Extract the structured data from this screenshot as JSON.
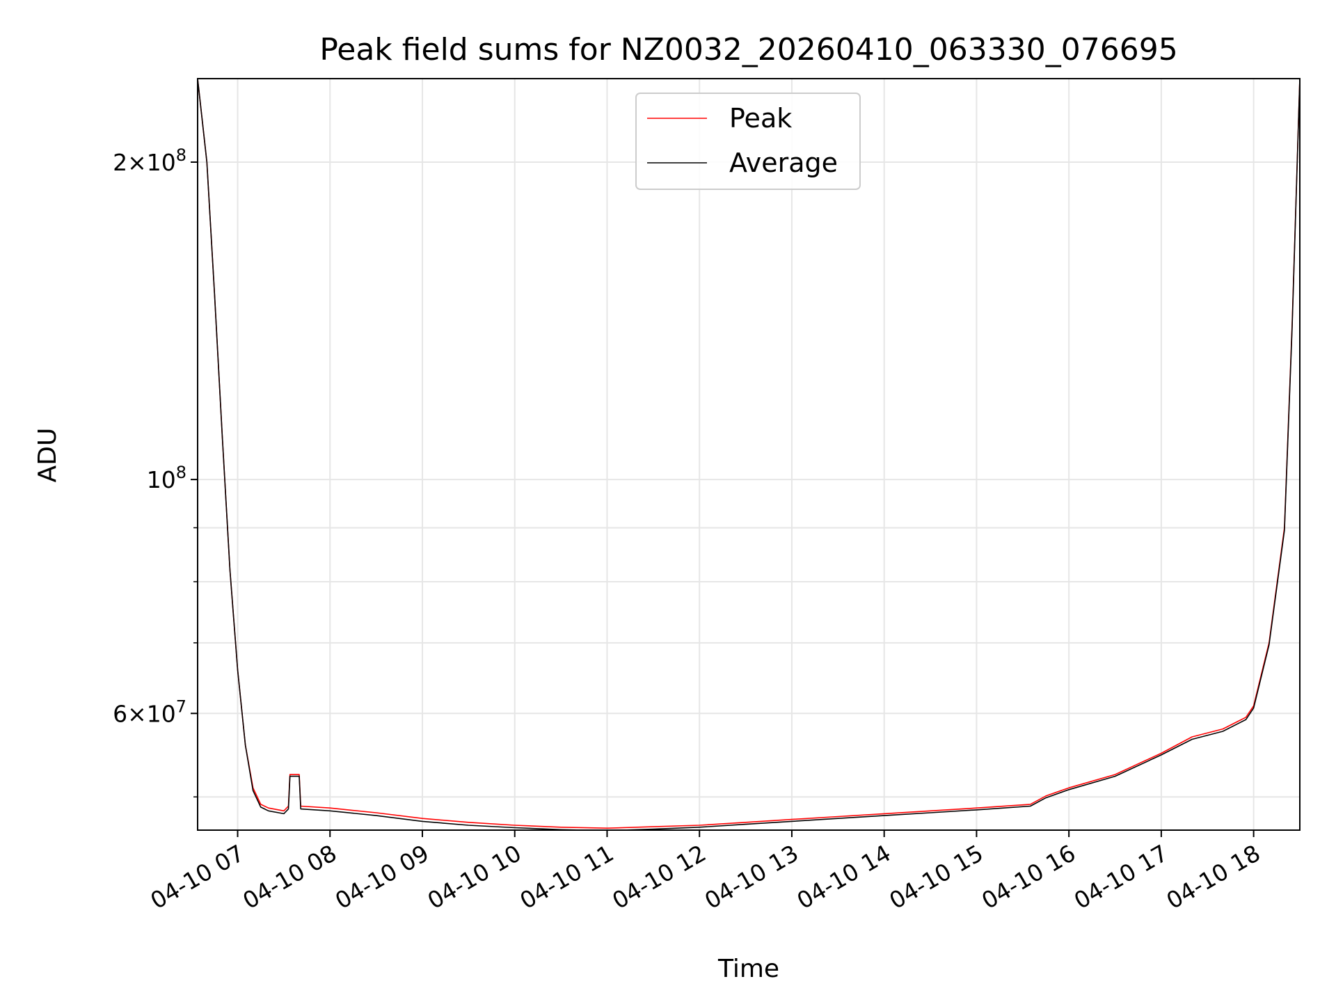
{
  "chart_data": {
    "type": "line",
    "title": "Peak field sums for NZ0032_20260410_063330_076695",
    "xlabel": "Time",
    "ylabel": "ADU",
    "yscale": "log",
    "grid": true,
    "legend_position": "top-center",
    "xlim": [
      "2026-04-10 06:34",
      "2026-04-10 18:30"
    ],
    "ylim": [
      46500000,
      240000000
    ],
    "x_ticks": [
      "04-10 07",
      "04-10 08",
      "04-10 09",
      "04-10 10",
      "04-10 11",
      "04-10 12",
      "04-10 13",
      "04-10 14",
      "04-10 15",
      "04-10 16",
      "04-10 17",
      "04-10 18"
    ],
    "y_ticks": [
      {
        "value": 200000000,
        "mant": "2",
        "exp": "8"
      },
      {
        "value": 100000000,
        "mant": "",
        "exp": "8"
      },
      {
        "value": 60000000,
        "mant": "6",
        "exp": "7"
      }
    ],
    "y_minor_ticks": [
      50000000,
      70000000,
      80000000,
      90000000
    ],
    "x": [
      "06:34",
      "06:40",
      "06:45",
      "06:50",
      "06:55",
      "07:00",
      "07:05",
      "07:10",
      "07:15",
      "07:20",
      "07:30",
      "07:33",
      "07:34",
      "07:40",
      "07:41",
      "08:00",
      "08:30",
      "09:00",
      "09:30",
      "10:00",
      "10:30",
      "11:00",
      "11:30",
      "12:00",
      "12:30",
      "13:00",
      "13:30",
      "14:00",
      "14:30",
      "15:00",
      "15:35",
      "15:45",
      "16:00",
      "16:30",
      "17:00",
      "17:20",
      "17:40",
      "17:55",
      "18:00",
      "18:10",
      "18:20",
      "18:25",
      "18:30"
    ],
    "series": [
      {
        "name": "Peak",
        "color": "#ff0000",
        "values": [
          240000000,
          200000000,
          150000000,
          110000000,
          82000000,
          66000000,
          56000000,
          51000000,
          49200000,
          48800000,
          48500000,
          49000000,
          52500000,
          52500000,
          49000000,
          48800000,
          48300000,
          47700000,
          47300000,
          47000000,
          46800000,
          46700000,
          46850000,
          47000000,
          47300000,
          47600000,
          47900000,
          48200000,
          48500000,
          48800000,
          49200000,
          50100000,
          51000000,
          52500000,
          55000000,
          57000000,
          58000000,
          59500000,
          61000000,
          70000000,
          90000000,
          140000000,
          240000000
        ]
      },
      {
        "name": "Average",
        "color": "#000000",
        "values": [
          240000000,
          200000000,
          150000000,
          110000000,
          82000000,
          66000000,
          56000000,
          50700000,
          48900000,
          48500000,
          48200000,
          48700000,
          52300000,
          52300000,
          48700000,
          48500000,
          48000000,
          47400000,
          47000000,
          46750000,
          46550000,
          46450000,
          46600000,
          46800000,
          47100000,
          47400000,
          47700000,
          48000000,
          48300000,
          48600000,
          49000000,
          49900000,
          50800000,
          52300000,
          54800000,
          56700000,
          57700000,
          59200000,
          60700000,
          69700000,
          89500000,
          139000000,
          240000000
        ]
      }
    ]
  }
}
